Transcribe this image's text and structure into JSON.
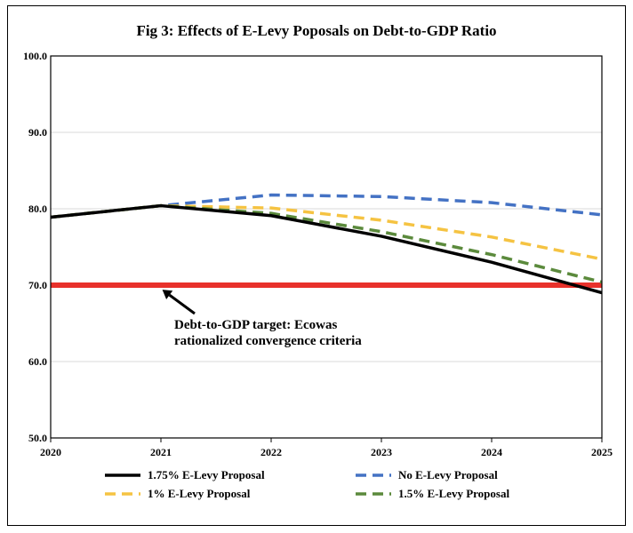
{
  "chart_data": {
    "type": "line",
    "title": "Fig 3: Effects of E-Levy Poposals on Debt-to-GDP Ratio",
    "xlabel": "",
    "ylabel": "",
    "x": [
      "2020",
      "2021",
      "2022",
      "2023",
      "2024",
      "2025"
    ],
    "y_ticks": [
      "50.0",
      "60.0",
      "70.0",
      "80.0",
      "90.0",
      "100.0"
    ],
    "ylim": [
      50,
      100
    ],
    "grid": true,
    "legend_position": "bottom",
    "series": [
      {
        "name": "1.75% E-Levy Proposal",
        "values": [
          78.9,
          80.4,
          79.1,
          76.4,
          73.0,
          69.0
        ],
        "color": "#000000",
        "style": "solid"
      },
      {
        "name": "No E-Levy Proposal",
        "values": [
          78.9,
          80.4,
          81.8,
          81.6,
          80.8,
          79.2
        ],
        "color": "#4472C4",
        "style": "dashed"
      },
      {
        "name": "1% E-Levy Proposal",
        "values": [
          78.9,
          80.4,
          80.1,
          78.5,
          76.3,
          73.4
        ],
        "color": "#F5C342",
        "style": "dashed"
      },
      {
        "name": "1.5% E-Levy Proposal",
        "values": [
          78.9,
          80.4,
          79.4,
          77.0,
          74.0,
          70.4
        ],
        "color": "#5B8A3C",
        "style": "dashed"
      }
    ],
    "target_line": {
      "value": 70.0,
      "color": "#E8312B"
    },
    "annotation": {
      "line1": "Debt-to-GDP target: Ecowas",
      "line2": "rationalized convergence criteria",
      "point_x": "2021",
      "point_y": 70.0
    }
  }
}
